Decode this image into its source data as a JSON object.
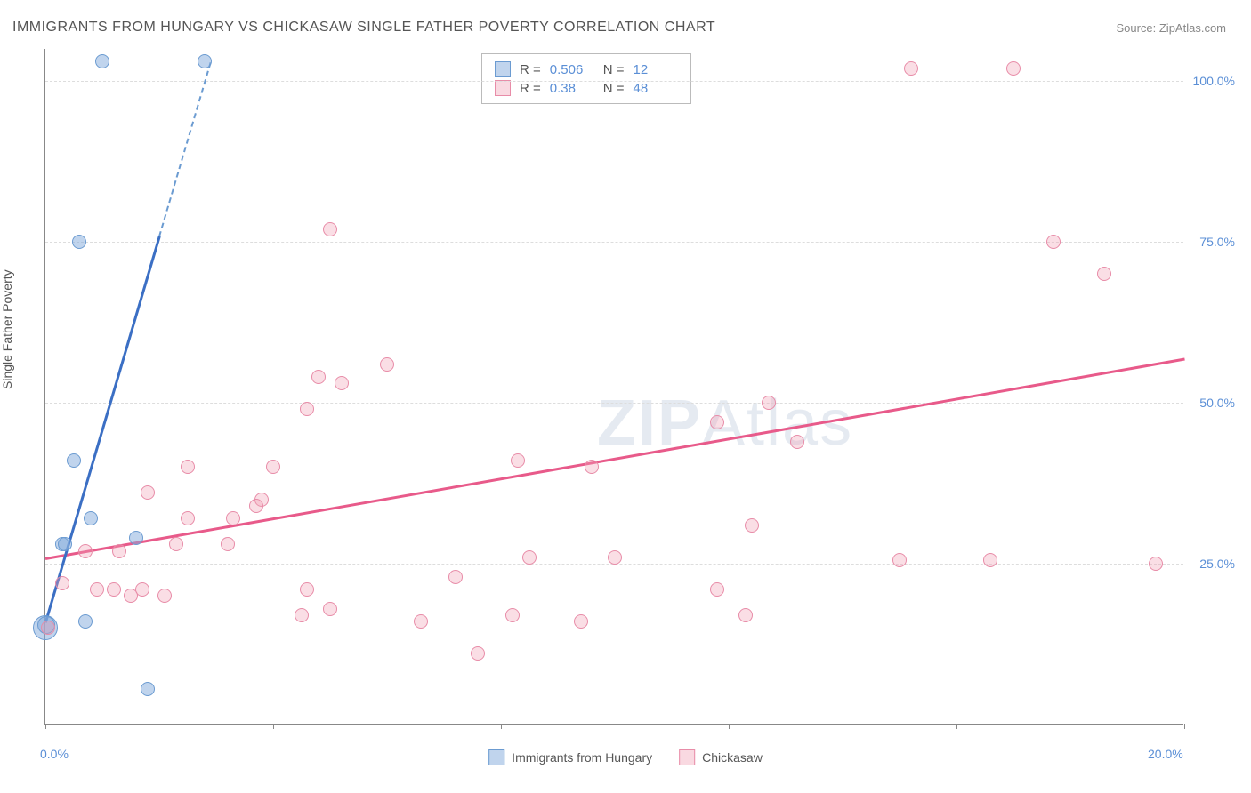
{
  "title": "IMMIGRANTS FROM HUNGARY VS CHICKASAW SINGLE FATHER POVERTY CORRELATION CHART",
  "source": "Source: ZipAtlas.com",
  "y_axis_label": "Single Father Poverty",
  "watermark_bold": "ZIP",
  "watermark_rest": "Atlas",
  "chart": {
    "type": "scatter",
    "xlim": [
      0,
      20
    ],
    "ylim": [
      0,
      105
    ],
    "x_ticks": [
      0,
      4,
      8,
      12,
      16,
      20
    ],
    "x_tick_labels": {
      "0": "0.0%",
      "20": "20.0%"
    },
    "y_ticks": [
      25,
      50,
      75,
      100
    ],
    "y_tick_labels": {
      "25": "25.0%",
      "50": "50.0%",
      "75": "75.0%",
      "100": "100.0%"
    },
    "background_color": "#ffffff",
    "grid_color": "#dddddd",
    "axis_color": "#888888",
    "label_color": "#5b8fd6",
    "series": [
      {
        "name": "Immigrants from Hungary",
        "color_fill": "rgba(130,170,220,0.5)",
        "color_stroke": "#6b9bd1",
        "regression_color": "#3b6fc4",
        "R": 0.506,
        "N": 12,
        "marker_radius": 8,
        "regression": {
          "x1": 0.0,
          "y1": 16,
          "x2": 2.9,
          "y2": 103,
          "dash_from_x": 2.0
        },
        "points": [
          {
            "x": 1.0,
            "y": 103,
            "r": 8
          },
          {
            "x": 2.8,
            "y": 103,
            "r": 8
          },
          {
            "x": 0.6,
            "y": 75,
            "r": 8
          },
          {
            "x": 0.5,
            "y": 41,
            "r": 8
          },
          {
            "x": 0.8,
            "y": 32,
            "r": 8
          },
          {
            "x": 1.6,
            "y": 29,
            "r": 8
          },
          {
            "x": 0.3,
            "y": 28,
            "r": 8
          },
          {
            "x": 0.35,
            "y": 28,
            "r": 8
          },
          {
            "x": 0.7,
            "y": 16,
            "r": 8
          },
          {
            "x": 0.0,
            "y": 15,
            "r": 14
          },
          {
            "x": 0.02,
            "y": 15.5,
            "r": 10
          },
          {
            "x": 1.8,
            "y": 5.5,
            "r": 8
          }
        ]
      },
      {
        "name": "Chickasaw",
        "color_fill": "rgba(240,160,180,0.35)",
        "color_stroke": "#e88ca8",
        "regression_color": "#e85a8a",
        "R": 0.38,
        "N": 48,
        "marker_radius": 8,
        "regression": {
          "x1": 0.0,
          "y1": 26,
          "x2": 20.0,
          "y2": 57
        },
        "points": [
          {
            "x": 15.2,
            "y": 102,
            "r": 8
          },
          {
            "x": 17.0,
            "y": 102,
            "r": 8
          },
          {
            "x": 5.0,
            "y": 77,
            "r": 8
          },
          {
            "x": 17.7,
            "y": 75,
            "r": 8
          },
          {
            "x": 18.6,
            "y": 70,
            "r": 8
          },
          {
            "x": 6.0,
            "y": 56,
            "r": 8
          },
          {
            "x": 4.8,
            "y": 54,
            "r": 8
          },
          {
            "x": 5.2,
            "y": 53,
            "r": 8
          },
          {
            "x": 12.7,
            "y": 50,
            "r": 8
          },
          {
            "x": 4.6,
            "y": 49,
            "r": 8
          },
          {
            "x": 11.8,
            "y": 47,
            "r": 8
          },
          {
            "x": 13.2,
            "y": 44,
            "r": 8
          },
          {
            "x": 8.3,
            "y": 41,
            "r": 8
          },
          {
            "x": 9.6,
            "y": 40,
            "r": 8
          },
          {
            "x": 2.5,
            "y": 40,
            "r": 8
          },
          {
            "x": 4.0,
            "y": 40,
            "r": 8
          },
          {
            "x": 1.8,
            "y": 36,
            "r": 8
          },
          {
            "x": 3.8,
            "y": 35,
            "r": 8
          },
          {
            "x": 3.7,
            "y": 34,
            "r": 8
          },
          {
            "x": 2.5,
            "y": 32,
            "r": 8
          },
          {
            "x": 3.3,
            "y": 32,
            "r": 8
          },
          {
            "x": 12.4,
            "y": 31,
            "r": 8
          },
          {
            "x": 2.3,
            "y": 28,
            "r": 8
          },
          {
            "x": 3.2,
            "y": 28,
            "r": 8
          },
          {
            "x": 0.7,
            "y": 27,
            "r": 8
          },
          {
            "x": 1.3,
            "y": 27,
            "r": 8
          },
          {
            "x": 8.5,
            "y": 26,
            "r": 8
          },
          {
            "x": 10.0,
            "y": 26,
            "r": 8
          },
          {
            "x": 15.0,
            "y": 25.5,
            "r": 8
          },
          {
            "x": 16.6,
            "y": 25.5,
            "r": 8
          },
          {
            "x": 19.5,
            "y": 25,
            "r": 8
          },
          {
            "x": 7.2,
            "y": 23,
            "r": 8
          },
          {
            "x": 0.3,
            "y": 22,
            "r": 8
          },
          {
            "x": 0.9,
            "y": 21,
            "r": 8
          },
          {
            "x": 1.2,
            "y": 21,
            "r": 8
          },
          {
            "x": 1.7,
            "y": 21,
            "r": 8
          },
          {
            "x": 4.6,
            "y": 21,
            "r": 8
          },
          {
            "x": 11.8,
            "y": 21,
            "r": 8
          },
          {
            "x": 1.5,
            "y": 20,
            "r": 8
          },
          {
            "x": 2.1,
            "y": 20,
            "r": 8
          },
          {
            "x": 12.3,
            "y": 17,
            "r": 8
          },
          {
            "x": 4.5,
            "y": 17,
            "r": 8
          },
          {
            "x": 8.2,
            "y": 17,
            "r": 8
          },
          {
            "x": 6.6,
            "y": 16,
            "r": 8
          },
          {
            "x": 9.4,
            "y": 16,
            "r": 8
          },
          {
            "x": 0.05,
            "y": 15,
            "r": 8
          },
          {
            "x": 7.6,
            "y": 11,
            "r": 8
          },
          {
            "x": 5.0,
            "y": 18,
            "r": 8
          }
        ]
      }
    ]
  },
  "stats_labels": {
    "R": "R =",
    "N": "N ="
  },
  "legend": {
    "series1": "Immigrants from Hungary",
    "series2": "Chickasaw"
  }
}
